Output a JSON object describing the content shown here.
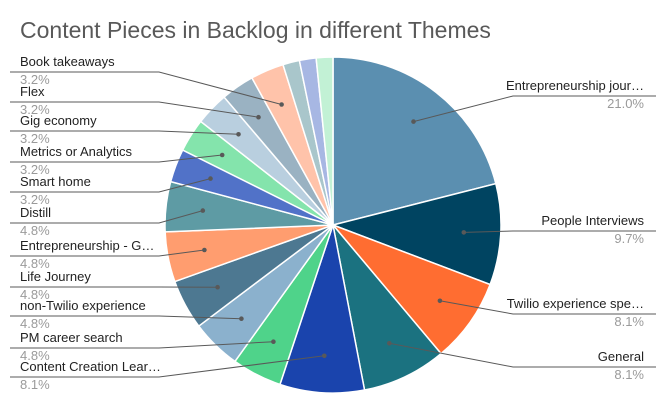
{
  "chart_data": {
    "type": "pie",
    "title": "Content Pieces in Backlog in different Themes",
    "start_angle_deg": 0,
    "direction": "clockwise",
    "slices": [
      {
        "label": "Entrepreneurship jour…",
        "value": 21.0,
        "pct_label": "21.0%",
        "color": "#5b8fb0"
      },
      {
        "label": "People Interviews",
        "value": 9.7,
        "pct_label": "9.7%",
        "color": "#004461"
      },
      {
        "label": "Twilio experience spe…",
        "value": 8.1,
        "pct_label": "8.1%",
        "color": "#ff6d31"
      },
      {
        "label": "General",
        "value": 8.1,
        "pct_label": "8.1%",
        "color": "#1b7280"
      },
      {
        "label": "Content Creation Lear…",
        "value": 8.1,
        "pct_label": "8.1%",
        "color": "#1a44ad"
      },
      {
        "label": "PM career search",
        "value": 4.8,
        "pct_label": "4.8%",
        "color": "#4fd38a"
      },
      {
        "label": "non-Twilio experience",
        "value": 4.8,
        "pct_label": "4.8%",
        "color": "#8bb1cd"
      },
      {
        "label": "Life Journey",
        "value": 4.8,
        "pct_label": "4.8%",
        "color": "#4d7891"
      },
      {
        "label": "Entrepreneurship - G…",
        "value": 4.8,
        "pct_label": "4.8%",
        "color": "#ff9d6f"
      },
      {
        "label": "Distill",
        "value": 4.8,
        "pct_label": "4.8%",
        "color": "#5e9ba4"
      },
      {
        "label": "Smart home",
        "value": 3.2,
        "pct_label": "3.2%",
        "color": "#5172c8"
      },
      {
        "label": "Metrics or Analytics",
        "value": 3.2,
        "pct_label": "3.2%",
        "color": "#84e4ac"
      },
      {
        "label": "Gig economy",
        "value": 3.2,
        "pct_label": "3.2%",
        "color": "#b9cfdf"
      },
      {
        "label": "Flex",
        "value": 3.2,
        "pct_label": "3.2%",
        "color": "#9ab2c2"
      },
      {
        "label": "Book takeaways",
        "value": 3.2,
        "pct_label": "3.2%",
        "color": "#ffc3aa"
      },
      {
        "label": "",
        "value": 1.6,
        "pct_label": "",
        "color": "#a9c6cb"
      },
      {
        "label": "",
        "value": 1.6,
        "pct_label": "",
        "color": "#a7b7e3"
      },
      {
        "label": "",
        "value": 1.6,
        "pct_label": "",
        "color": "#c2f1d5"
      }
    ]
  }
}
